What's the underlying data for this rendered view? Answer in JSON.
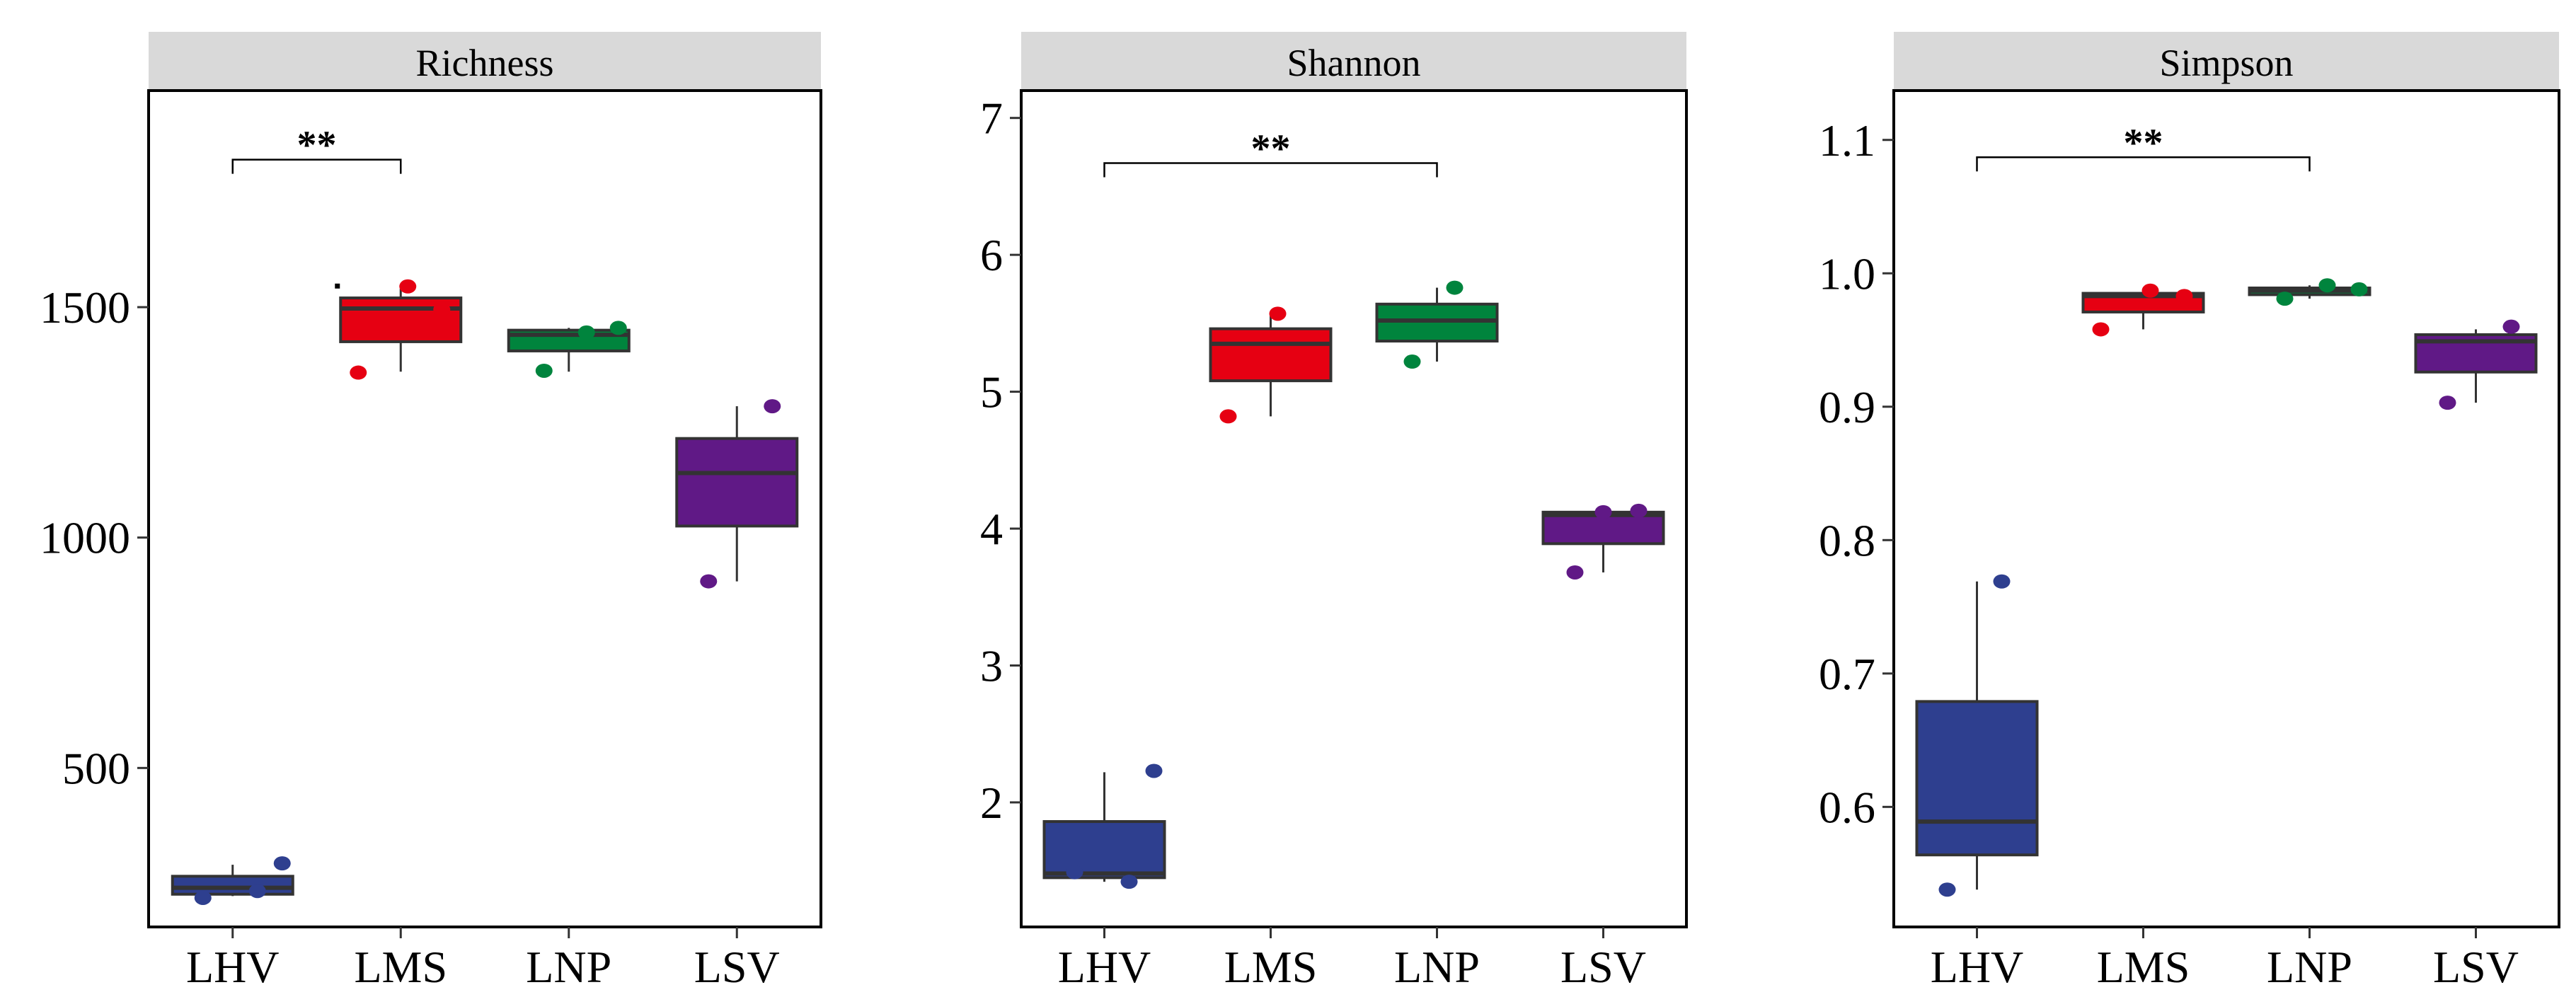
{
  "chart_data": [
    {
      "type": "boxplot",
      "title": "Richness",
      "categories": [
        "LHV",
        "LMS",
        "LNP",
        "LSV"
      ],
      "colors": {
        "LHV": "#2E3F8F",
        "LMS": "#E60012",
        "LNP": "#00843D",
        "LSV": "#601986"
      },
      "ylim": [
        155,
        1970
      ],
      "yticks": [
        500,
        1000,
        1500
      ],
      "ytick_labels": [
        "500",
        "1000",
        "1500"
      ],
      "boxes": [
        {
          "category": "LHV",
          "min": 222,
          "q1": 226,
          "median": 240,
          "q3": 265,
          "max": 290
        },
        {
          "category": "LMS",
          "min": 1360,
          "q1": 1425,
          "median": 1497,
          "q3": 1520,
          "max": 1540
        },
        {
          "category": "LNP",
          "min": 1360,
          "q1": 1405,
          "median": 1440,
          "q3": 1450,
          "max": 1455
        },
        {
          "category": "LSV",
          "min": 905,
          "q1": 1025,
          "median": 1140,
          "q3": 1215,
          "max": 1285
        }
      ],
      "points": [
        {
          "category": "LHV",
          "values": [
            218,
            233,
            293
          ]
        },
        {
          "category": "LMS",
          "values": [
            1358,
            1545,
            1495
          ]
        },
        {
          "category": "LNP",
          "values": [
            1362,
            1445,
            1455
          ]
        },
        {
          "category": "LSV",
          "values": [
            905,
            1285
          ]
        }
      ],
      "outliers": [
        {
          "category": "LMS",
          "value": 1545
        }
      ],
      "significance": {
        "from": "LHV",
        "to": "LMS",
        "label": "**",
        "y": 1820
      }
    },
    {
      "type": "boxplot",
      "title": "Shannon",
      "categories": [
        "LHV",
        "LMS",
        "LNP",
        "LSV"
      ],
      "colors": {
        "LHV": "#2E3F8F",
        "LMS": "#E60012",
        "LNP": "#00843D",
        "LSV": "#601986"
      },
      "ylim": [
        1.09,
        7.2
      ],
      "yticks": [
        2,
        3,
        4,
        5,
        6,
        7
      ],
      "ytick_labels": [
        "2",
        "3",
        "4",
        "5",
        "6",
        "7"
      ],
      "boxes": [
        {
          "category": "LHV",
          "min": 1.42,
          "q1": 1.45,
          "median": 1.48,
          "q3": 1.86,
          "max": 2.22
        },
        {
          "category": "LMS",
          "min": 4.82,
          "q1": 5.08,
          "median": 5.35,
          "q3": 5.46,
          "max": 5.57
        },
        {
          "category": "LNP",
          "min": 5.22,
          "q1": 5.37,
          "median": 5.52,
          "q3": 5.64,
          "max": 5.76
        },
        {
          "category": "LSV",
          "min": 3.68,
          "q1": 3.89,
          "median": 4.1,
          "q3": 4.12,
          "max": 4.13
        }
      ],
      "points": [
        {
          "category": "LHV",
          "values": [
            1.49,
            1.42,
            2.23
          ]
        },
        {
          "category": "LMS",
          "values": [
            4.82,
            5.57
          ]
        },
        {
          "category": "LNP",
          "values": [
            5.22,
            5.76
          ]
        },
        {
          "category": "LSV",
          "values": [
            3.68,
            4.13,
            4.12
          ]
        }
      ],
      "outliers": [],
      "significance": {
        "from": "LHV",
        "to": "LNP",
        "label": "**",
        "y": 6.67
      }
    },
    {
      "type": "boxplot",
      "title": "Simpson",
      "categories": [
        "LHV",
        "LMS",
        "LNP",
        "LSV"
      ],
      "colors": {
        "LHV": "#2E3F8F",
        "LMS": "#E60012",
        "LNP": "#00843D",
        "LSV": "#601986"
      },
      "ylim": [
        0.51,
        1.137
      ],
      "yticks": [
        0.6,
        0.7,
        0.8,
        0.9,
        1.0,
        1.1
      ],
      "ytick_labels": [
        "0.6",
        "0.7",
        "0.8",
        "0.9",
        "1.0",
        "1.1"
      ],
      "boxes": [
        {
          "category": "LHV",
          "min": 0.538,
          "q1": 0.564,
          "median": 0.589,
          "q3": 0.679,
          "max": 0.769
        },
        {
          "category": "LMS",
          "min": 0.958,
          "q1": 0.971,
          "median": 0.983,
          "q3": 0.985,
          "max": 0.987
        },
        {
          "category": "LNP",
          "min": 0.981,
          "q1": 0.984,
          "median": 0.987,
          "q3": 0.989,
          "max": 0.991
        },
        {
          "category": "LSV",
          "min": 0.903,
          "q1": 0.926,
          "median": 0.949,
          "q3": 0.954,
          "max": 0.958
        }
      ],
      "points": [
        {
          "category": "LHV",
          "values": [
            0.538,
            0.769
          ]
        },
        {
          "category": "LMS",
          "values": [
            0.958,
            0.987,
            0.983
          ]
        },
        {
          "category": "LNP",
          "values": [
            0.981,
            0.991,
            0.988
          ]
        },
        {
          "category": "LSV",
          "values": [
            0.903,
            0.96
          ]
        }
      ],
      "outliers": [],
      "significance": {
        "from": "LHV",
        "to": "LNP",
        "label": "**",
        "y": 1.087
      }
    }
  ]
}
